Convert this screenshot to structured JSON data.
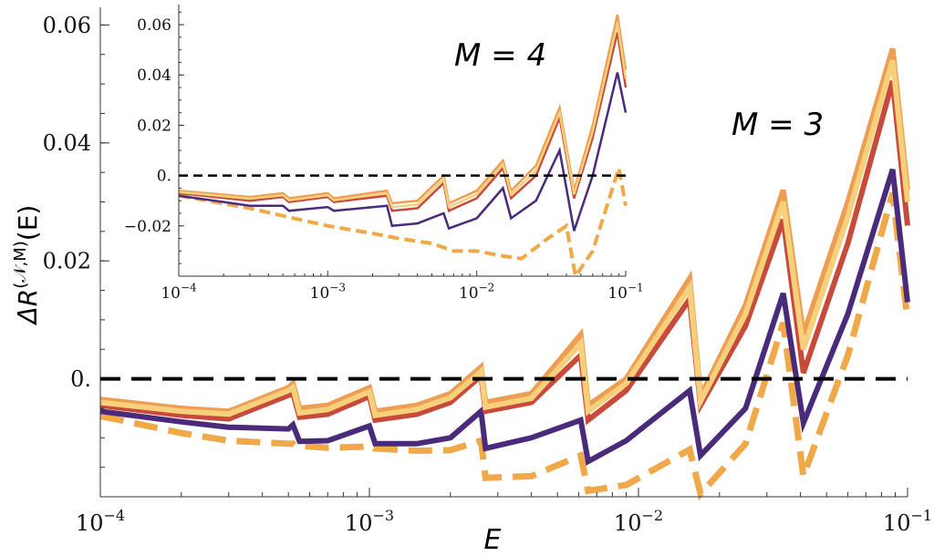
{
  "chart_data": [
    {
      "name": "main",
      "type": "line",
      "xscale": "log",
      "xlim": [
        0.0001,
        0.1
      ],
      "ylim": [
        -0.02,
        0.063
      ],
      "xlabel": "E",
      "ylabel_base": "ΔR",
      "ylabel_sup": "(𝒩,M)",
      "ylabel_tail": "(E)",
      "annotation": "M = 3",
      "xticks": [
        {
          "value": 0.0001,
          "base": "10",
          "exp": "−4"
        },
        {
          "value": 0.001,
          "base": "10",
          "exp": "−3"
        },
        {
          "value": 0.01,
          "base": "10",
          "exp": "−2"
        },
        {
          "value": 0.1,
          "base": "10",
          "exp": "−1"
        }
      ],
      "yticks": [
        {
          "value": 0,
          "label": "0."
        },
        {
          "value": 0.02,
          "label": "0.02"
        },
        {
          "value": 0.04,
          "label": "0.04"
        },
        {
          "value": 0.06,
          "label": "0.06"
        }
      ],
      "reference_line": {
        "y": 0,
        "color": "#000000",
        "style": "dashed"
      },
      "series": [
        {
          "name": "dashed-orange",
          "color": "#f0a848",
          "style": "dashed",
          "points": [
            [
              0.0001,
              -0.0063
            ],
            [
              0.0002,
              -0.0092
            ],
            [
              0.0003,
              -0.0105
            ],
            [
              0.0005,
              -0.011
            ],
            [
              0.00052,
              -0.011
            ],
            [
              0.00053,
              -0.0113
            ],
            [
              0.0007,
              -0.0117
            ],
            [
              0.001,
              -0.0115
            ],
            [
              0.00102,
              -0.0115
            ],
            [
              0.00104,
              -0.0118
            ],
            [
              0.0015,
              -0.0122
            ],
            [
              0.002,
              -0.0121
            ],
            [
              0.0026,
              -0.0105
            ],
            [
              0.0027,
              -0.0168
            ],
            [
              0.004,
              -0.0165
            ],
            [
              0.0061,
              -0.013
            ],
            [
              0.0065,
              -0.019
            ],
            [
              0.009,
              -0.018
            ],
            [
              0.0155,
              -0.012
            ],
            [
              0.017,
              -0.0195
            ],
            [
              0.025,
              -0.011
            ],
            [
              0.0345,
              0.0095
            ],
            [
              0.041,
              -0.0165
            ],
            [
              0.06,
              0.004
            ],
            [
              0.088,
              0.0315
            ],
            [
              0.1,
              0.01
            ]
          ]
        },
        {
          "name": "purple",
          "color": "#4a2a7a",
          "style": "solid",
          "points": [
            [
              0.0001,
              -0.0055
            ],
            [
              0.0002,
              -0.0073
            ],
            [
              0.0003,
              -0.0082
            ],
            [
              0.0005,
              -0.0085
            ],
            [
              0.00052,
              -0.0078
            ],
            [
              0.00055,
              -0.0106
            ],
            [
              0.0007,
              -0.0105
            ],
            [
              0.001,
              -0.008
            ],
            [
              0.00105,
              -0.011
            ],
            [
              0.0015,
              -0.011
            ],
            [
              0.002,
              -0.01
            ],
            [
              0.0026,
              -0.0055
            ],
            [
              0.0027,
              -0.0118
            ],
            [
              0.004,
              -0.01
            ],
            [
              0.0061,
              -0.007
            ],
            [
              0.0065,
              -0.014
            ],
            [
              0.009,
              -0.0105
            ],
            [
              0.0155,
              -0.002
            ],
            [
              0.017,
              -0.013
            ],
            [
              0.025,
              -0.005
            ],
            [
              0.0345,
              0.0145
            ],
            [
              0.041,
              -0.0075
            ],
            [
              0.06,
              0.011
            ],
            [
              0.088,
              0.0355
            ],
            [
              0.1,
              0.013
            ]
          ]
        },
        {
          "name": "red",
          "color": "#c84a3a",
          "style": "solid",
          "points": [
            [
              0.0001,
              -0.0045
            ],
            [
              0.0002,
              -0.0062
            ],
            [
              0.0003,
              -0.0068
            ],
            [
              0.0005,
              -0.0028
            ],
            [
              0.00052,
              -0.0025
            ],
            [
              0.00055,
              -0.0065
            ],
            [
              0.0007,
              -0.006
            ],
            [
              0.001,
              -0.003
            ],
            [
              0.00105,
              -0.007
            ],
            [
              0.0015,
              -0.006
            ],
            [
              0.002,
              -0.004
            ],
            [
              0.0026,
              0.0005
            ],
            [
              0.0027,
              -0.0055
            ],
            [
              0.004,
              -0.004
            ],
            [
              0.0061,
              0.004
            ],
            [
              0.0065,
              -0.007
            ],
            [
              0.009,
              -0.002
            ],
            [
              0.0155,
              0.0135
            ],
            [
              0.017,
              -0.0045
            ],
            [
              0.025,
              0.009
            ],
            [
              0.0345,
              0.027
            ],
            [
              0.041,
              0.001
            ],
            [
              0.06,
              0.023
            ],
            [
              0.088,
              0.0505
            ],
            [
              0.1,
              0.026
            ]
          ]
        },
        {
          "name": "orange",
          "color": "#ee9e52",
          "style": "solid",
          "points": [
            [
              0.0001,
              -0.0035
            ],
            [
              0.0002,
              -0.005
            ],
            [
              0.0003,
              -0.0055
            ],
            [
              0.0005,
              -0.0015
            ],
            [
              0.00052,
              -0.0008
            ],
            [
              0.00055,
              -0.005
            ],
            [
              0.0007,
              -0.0045
            ],
            [
              0.001,
              -0.0015
            ],
            [
              0.00105,
              -0.0055
            ],
            [
              0.0015,
              -0.0045
            ],
            [
              0.002,
              -0.0025
            ],
            [
              0.0026,
              0.002
            ],
            [
              0.0027,
              -0.004
            ],
            [
              0.004,
              -0.0025
            ],
            [
              0.0061,
              0.0075
            ],
            [
              0.0065,
              -0.0045
            ],
            [
              0.009,
              0.0
            ],
            [
              0.0155,
              0.017
            ],
            [
              0.017,
              -0.003
            ],
            [
              0.025,
              0.0125
            ],
            [
              0.0345,
              0.032
            ],
            [
              0.041,
              0.0075
            ],
            [
              0.06,
              0.03
            ],
            [
              0.088,
              0.056
            ],
            [
              0.1,
              0.032
            ]
          ]
        },
        {
          "name": "yellow",
          "color": "#f6d07a",
          "style": "solid",
          "points": [
            [
              0.0001,
              -0.004
            ],
            [
              0.0002,
              -0.0055
            ],
            [
              0.0003,
              -0.006
            ],
            [
              0.0005,
              -0.002
            ],
            [
              0.00052,
              -0.0015
            ],
            [
              0.00055,
              -0.0058
            ],
            [
              0.0007,
              -0.0052
            ],
            [
              0.001,
              -0.0022
            ],
            [
              0.00105,
              -0.0062
            ],
            [
              0.0015,
              -0.0052
            ],
            [
              0.002,
              -0.0032
            ],
            [
              0.0026,
              0.0012
            ],
            [
              0.0027,
              -0.0048
            ],
            [
              0.004,
              -0.0033
            ],
            [
              0.0061,
              0.006
            ],
            [
              0.0065,
              -0.0055
            ],
            [
              0.009,
              -0.0008
            ],
            [
              0.0155,
              0.0155
            ],
            [
              0.017,
              -0.0038
            ],
            [
              0.025,
              0.011
            ],
            [
              0.0345,
              0.03
            ],
            [
              0.041,
              0.005
            ],
            [
              0.06,
              0.0275
            ],
            [
              0.088,
              0.054
            ],
            [
              0.1,
              0.03
            ]
          ]
        }
      ]
    },
    {
      "name": "inset",
      "type": "line",
      "xscale": "log",
      "xlim": [
        0.0001,
        0.1
      ],
      "ylim": [
        -0.04,
        0.068
      ],
      "xlabel": "",
      "annotation": "M = 4",
      "xticks": [
        {
          "value": 0.0001,
          "base": "10",
          "exp": "−4"
        },
        {
          "value": 0.001,
          "base": "10",
          "exp": "−3"
        },
        {
          "value": 0.01,
          "base": "10",
          "exp": "−2"
        },
        {
          "value": 0.1,
          "base": "10",
          "exp": "−1"
        }
      ],
      "yticks": [
        {
          "value": -0.02,
          "label": "−0.02"
        },
        {
          "value": 0,
          "label": "0."
        },
        {
          "value": 0.02,
          "label": "0.02"
        },
        {
          "value": 0.04,
          "label": "0.04"
        },
        {
          "value": 0.06,
          "label": "0.06"
        }
      ],
      "reference_line": {
        "y": 0,
        "color": "#000000",
        "style": "dashed"
      },
      "series": [
        {
          "name": "dashed-orange",
          "color": "#f0a848",
          "style": "dashed",
          "points": [
            [
              0.0001,
              -0.008
            ],
            [
              0.0003,
              -0.013
            ],
            [
              0.0005,
              -0.016
            ],
            [
              0.001,
              -0.02
            ],
            [
              0.002,
              -0.023
            ],
            [
              0.003,
              -0.025
            ],
            [
              0.005,
              -0.027
            ],
            [
              0.007,
              -0.03
            ],
            [
              0.01,
              -0.03
            ],
            [
              0.015,
              -0.032
            ],
            [
              0.02,
              -0.033
            ],
            [
              0.03,
              -0.025
            ],
            [
              0.04,
              -0.02
            ],
            [
              0.046,
              -0.04
            ],
            [
              0.06,
              -0.03
            ],
            [
              0.09,
              0.003
            ],
            [
              0.1,
              -0.012
            ]
          ]
        },
        {
          "name": "purple",
          "color": "#4a2a7a",
          "style": "solid",
          "points": [
            [
              0.0001,
              -0.008
            ],
            [
              0.0003,
              -0.012
            ],
            [
              0.0005,
              -0.012
            ],
            [
              0.00055,
              -0.014
            ],
            [
              0.001,
              -0.0125
            ],
            [
              0.0011,
              -0.014
            ],
            [
              0.0025,
              -0.012
            ],
            [
              0.0027,
              -0.02
            ],
            [
              0.004,
              -0.019
            ],
            [
              0.006,
              -0.015
            ],
            [
              0.0065,
              -0.021
            ],
            [
              0.01,
              -0.017
            ],
            [
              0.015,
              -0.005
            ],
            [
              0.017,
              -0.017
            ],
            [
              0.025,
              -0.01
            ],
            [
              0.036,
              0.01
            ],
            [
              0.045,
              -0.022
            ],
            [
              0.06,
              0.0
            ],
            [
              0.088,
              0.041
            ],
            [
              0.1,
              0.025
            ]
          ]
        },
        {
          "name": "red",
          "color": "#c84a3a",
          "style": "solid",
          "points": [
            [
              0.0001,
              -0.007
            ],
            [
              0.0003,
              -0.01
            ],
            [
              0.0005,
              -0.0085
            ],
            [
              0.00055,
              -0.0105
            ],
            [
              0.001,
              -0.0085
            ],
            [
              0.0011,
              -0.0105
            ],
            [
              0.0025,
              -0.008
            ],
            [
              0.0027,
              -0.014
            ],
            [
              0.004,
              -0.013
            ],
            [
              0.006,
              -0.003
            ],
            [
              0.0065,
              -0.014
            ],
            [
              0.01,
              -0.009
            ],
            [
              0.015,
              0.003
            ],
            [
              0.017,
              -0.009
            ],
            [
              0.025,
              0.0
            ],
            [
              0.036,
              0.023
            ],
            [
              0.045,
              -0.009
            ],
            [
              0.06,
              0.015
            ],
            [
              0.088,
              0.057
            ],
            [
              0.1,
              0.035
            ]
          ]
        },
        {
          "name": "orange",
          "color": "#ee9e52",
          "style": "solid",
          "points": [
            [
              0.0001,
              -0.006
            ],
            [
              0.0003,
              -0.0085
            ],
            [
              0.0005,
              -0.007
            ],
            [
              0.00055,
              -0.009
            ],
            [
              0.001,
              -0.007
            ],
            [
              0.0011,
              -0.009
            ],
            [
              0.0025,
              -0.006
            ],
            [
              0.0027,
              -0.011
            ],
            [
              0.004,
              -0.01
            ],
            [
              0.006,
              0.0
            ],
            [
              0.0065,
              -0.011
            ],
            [
              0.01,
              -0.006
            ],
            [
              0.015,
              0.006
            ],
            [
              0.017,
              -0.006
            ],
            [
              0.025,
              0.004
            ],
            [
              0.036,
              0.027
            ],
            [
              0.045,
              -0.006
            ],
            [
              0.06,
              0.02
            ],
            [
              0.088,
              0.064
            ],
            [
              0.1,
              0.042
            ]
          ]
        },
        {
          "name": "yellow",
          "color": "#f6d07a",
          "style": "solid",
          "points": [
            [
              0.0001,
              -0.0065
            ],
            [
              0.0003,
              -0.0092
            ],
            [
              0.0005,
              -0.0078
            ],
            [
              0.00055,
              -0.0098
            ],
            [
              0.001,
              -0.0078
            ],
            [
              0.0011,
              -0.0098
            ],
            [
              0.0025,
              -0.007
            ],
            [
              0.0027,
              -0.0125
            ],
            [
              0.004,
              -0.0115
            ],
            [
              0.006,
              -0.0015
            ],
            [
              0.0065,
              -0.0125
            ],
            [
              0.01,
              -0.0075
            ],
            [
              0.015,
              0.0045
            ],
            [
              0.017,
              -0.0075
            ],
            [
              0.025,
              0.002
            ],
            [
              0.036,
              0.025
            ],
            [
              0.045,
              -0.0075
            ],
            [
              0.06,
              0.0175
            ],
            [
              0.088,
              0.0605
            ],
            [
              0.1,
              0.0385
            ]
          ]
        }
      ]
    }
  ]
}
